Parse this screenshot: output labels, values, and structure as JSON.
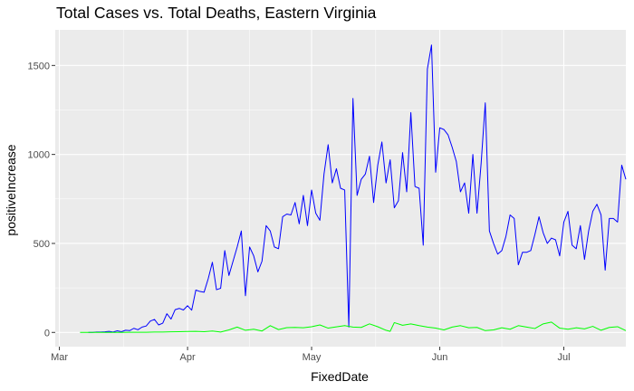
{
  "chart_data": {
    "type": "line",
    "title": "Total Cases vs. Total Deaths, Eastern Virginia",
    "xlabel": "FixedDate",
    "ylabel": "positiveIncrease",
    "x_ticks": [
      {
        "label": "Mar",
        "date": "2020-03-01"
      },
      {
        "label": "Apr",
        "date": "2020-04-01"
      },
      {
        "label": "May",
        "date": "2020-05-01"
      },
      {
        "label": "Jun",
        "date": "2020-06-01"
      },
      {
        "label": "Jul",
        "date": "2020-07-01"
      }
    ],
    "y_ticks": [
      0,
      500,
      1000,
      1500
    ],
    "xlim": [
      "2020-02-29",
      "2020-07-16"
    ],
    "ylim": [
      -80,
      1700
    ],
    "grid": true,
    "legend": "none",
    "background": "#ebebeb",
    "series": [
      {
        "color": "#0000ff",
        "points": [
          [
            "2020-03-08",
            0
          ],
          [
            "2020-03-09",
            0
          ],
          [
            "2020-03-10",
            2
          ],
          [
            "2020-03-11",
            2
          ],
          [
            "2020-03-12",
            3
          ],
          [
            "2020-03-13",
            6
          ],
          [
            "2020-03-14",
            2
          ],
          [
            "2020-03-15",
            9
          ],
          [
            "2020-03-16",
            4
          ],
          [
            "2020-03-17",
            12
          ],
          [
            "2020-03-18",
            10
          ],
          [
            "2020-03-19",
            23
          ],
          [
            "2020-03-20",
            15
          ],
          [
            "2020-03-21",
            30
          ],
          [
            "2020-03-22",
            36
          ],
          [
            "2020-03-23",
            64
          ],
          [
            "2020-03-24",
            73
          ],
          [
            "2020-03-25",
            42
          ],
          [
            "2020-03-26",
            52
          ],
          [
            "2020-03-27",
            105
          ],
          [
            "2020-03-28",
            75
          ],
          [
            "2020-03-29",
            128
          ],
          [
            "2020-03-30",
            135
          ],
          [
            "2020-03-31",
            126
          ],
          [
            "2020-04-01",
            150
          ],
          [
            "2020-04-02",
            125
          ],
          [
            "2020-04-03",
            238
          ],
          [
            "2020-04-04",
            230
          ],
          [
            "2020-04-05",
            226
          ],
          [
            "2020-04-06",
            302
          ],
          [
            "2020-04-07",
            394
          ],
          [
            "2020-04-08",
            240
          ],
          [
            "2020-04-09",
            248
          ],
          [
            "2020-04-10",
            460
          ],
          [
            "2020-04-11",
            320
          ],
          [
            "2020-04-12",
            400
          ],
          [
            "2020-04-13",
            480
          ],
          [
            "2020-04-14",
            570
          ],
          [
            "2020-04-15",
            206
          ],
          [
            "2020-04-16",
            480
          ],
          [
            "2020-04-17",
            430
          ],
          [
            "2020-04-18",
            340
          ],
          [
            "2020-04-19",
            400
          ],
          [
            "2020-04-20",
            600
          ],
          [
            "2020-04-21",
            570
          ],
          [
            "2020-04-22",
            480
          ],
          [
            "2020-04-23",
            470
          ],
          [
            "2020-04-24",
            650
          ],
          [
            "2020-04-25",
            665
          ],
          [
            "2020-04-26",
            660
          ],
          [
            "2020-04-27",
            730
          ],
          [
            "2020-04-28",
            610
          ],
          [
            "2020-04-29",
            770
          ],
          [
            "2020-04-30",
            600
          ],
          [
            "2020-05-01",
            800
          ],
          [
            "2020-05-02",
            670
          ],
          [
            "2020-05-03",
            630
          ],
          [
            "2020-05-04",
            890
          ],
          [
            "2020-05-05",
            1055
          ],
          [
            "2020-05-06",
            840
          ],
          [
            "2020-05-07",
            920
          ],
          [
            "2020-05-08",
            810
          ],
          [
            "2020-05-09",
            800
          ],
          [
            "2020-05-10",
            30
          ],
          [
            "2020-05-11",
            1315
          ],
          [
            "2020-05-12",
            770
          ],
          [
            "2020-05-13",
            860
          ],
          [
            "2020-05-14",
            890
          ],
          [
            "2020-05-15",
            990
          ],
          [
            "2020-05-16",
            730
          ],
          [
            "2020-05-17",
            940
          ],
          [
            "2020-05-18",
            1070
          ],
          [
            "2020-05-19",
            840
          ],
          [
            "2020-05-20",
            970
          ],
          [
            "2020-05-21",
            700
          ],
          [
            "2020-05-22",
            740
          ],
          [
            "2020-05-23",
            1010
          ],
          [
            "2020-05-24",
            790
          ],
          [
            "2020-05-25",
            1235
          ],
          [
            "2020-05-26",
            820
          ],
          [
            "2020-05-27",
            810
          ],
          [
            "2020-05-28",
            490
          ],
          [
            "2020-05-29",
            1480
          ],
          [
            "2020-05-30",
            1615
          ],
          [
            "2020-05-31",
            900
          ],
          [
            "2020-06-01",
            1150
          ],
          [
            "2020-06-02",
            1140
          ],
          [
            "2020-06-03",
            1110
          ],
          [
            "2020-06-04",
            1040
          ],
          [
            "2020-06-05",
            960
          ],
          [
            "2020-06-06",
            790
          ],
          [
            "2020-06-07",
            840
          ],
          [
            "2020-06-08",
            670
          ],
          [
            "2020-06-09",
            1000
          ],
          [
            "2020-06-10",
            670
          ],
          [
            "2020-06-11",
            950
          ],
          [
            "2020-06-12",
            1290
          ],
          [
            "2020-06-13",
            570
          ],
          [
            "2020-06-14",
            500
          ],
          [
            "2020-06-15",
            440
          ],
          [
            "2020-06-16",
            460
          ],
          [
            "2020-06-17",
            540
          ],
          [
            "2020-06-18",
            660
          ],
          [
            "2020-06-19",
            640
          ],
          [
            "2020-06-20",
            380
          ],
          [
            "2020-06-21",
            450
          ],
          [
            "2020-06-22",
            450
          ],
          [
            "2020-06-23",
            460
          ],
          [
            "2020-06-24",
            550
          ],
          [
            "2020-06-25",
            650
          ],
          [
            "2020-06-26",
            560
          ],
          [
            "2020-06-27",
            500
          ],
          [
            "2020-06-28",
            530
          ],
          [
            "2020-06-29",
            520
          ],
          [
            "2020-06-30",
            430
          ],
          [
            "2020-07-01",
            620
          ],
          [
            "2020-07-02",
            680
          ],
          [
            "2020-07-03",
            490
          ],
          [
            "2020-07-04",
            470
          ],
          [
            "2020-07-05",
            600
          ],
          [
            "2020-07-06",
            410
          ],
          [
            "2020-07-07",
            570
          ],
          [
            "2020-07-08",
            680
          ],
          [
            "2020-07-09",
            720
          ],
          [
            "2020-07-10",
            660
          ],
          [
            "2020-07-11",
            350
          ],
          [
            "2020-07-12",
            640
          ],
          [
            "2020-07-13",
            640
          ],
          [
            "2020-07-14",
            620
          ],
          [
            "2020-07-15",
            940
          ],
          [
            "2020-07-16",
            860
          ]
        ]
      },
      {
        "color": "#00ff00",
        "points": [
          [
            "2020-03-06",
            0
          ],
          [
            "2020-03-08",
            0
          ],
          [
            "2020-03-10",
            0
          ],
          [
            "2020-03-12",
            0
          ],
          [
            "2020-03-14",
            0
          ],
          [
            "2020-03-16",
            0
          ],
          [
            "2020-03-18",
            1
          ],
          [
            "2020-03-20",
            1
          ],
          [
            "2020-03-22",
            1
          ],
          [
            "2020-03-24",
            2
          ],
          [
            "2020-03-26",
            2
          ],
          [
            "2020-03-28",
            3
          ],
          [
            "2020-03-30",
            4
          ],
          [
            "2020-04-01",
            5
          ],
          [
            "2020-04-03",
            6
          ],
          [
            "2020-04-05",
            4
          ],
          [
            "2020-04-07",
            8
          ],
          [
            "2020-04-09",
            2
          ],
          [
            "2020-04-11",
            14
          ],
          [
            "2020-04-13",
            30
          ],
          [
            "2020-04-15",
            12
          ],
          [
            "2020-04-17",
            18
          ],
          [
            "2020-04-19",
            8
          ],
          [
            "2020-04-21",
            38
          ],
          [
            "2020-04-23",
            16
          ],
          [
            "2020-04-25",
            27
          ],
          [
            "2020-04-27",
            28
          ],
          [
            "2020-04-29",
            26
          ],
          [
            "2020-05-01",
            32
          ],
          [
            "2020-05-03",
            42
          ],
          [
            "2020-05-05",
            24
          ],
          [
            "2020-05-07",
            31
          ],
          [
            "2020-05-09",
            38
          ],
          [
            "2020-05-11",
            30
          ],
          [
            "2020-05-13",
            28
          ],
          [
            "2020-05-15",
            48
          ],
          [
            "2020-05-17",
            32
          ],
          [
            "2020-05-19",
            12
          ],
          [
            "2020-05-20",
            6
          ],
          [
            "2020-05-21",
            55
          ],
          [
            "2020-05-23",
            40
          ],
          [
            "2020-05-25",
            48
          ],
          [
            "2020-05-27",
            38
          ],
          [
            "2020-05-29",
            30
          ],
          [
            "2020-05-31",
            24
          ],
          [
            "2020-06-02",
            14
          ],
          [
            "2020-06-04",
            30
          ],
          [
            "2020-06-06",
            38
          ],
          [
            "2020-06-08",
            26
          ],
          [
            "2020-06-10",
            28
          ],
          [
            "2020-06-12",
            10
          ],
          [
            "2020-06-14",
            14
          ],
          [
            "2020-06-16",
            26
          ],
          [
            "2020-06-18",
            18
          ],
          [
            "2020-06-20",
            38
          ],
          [
            "2020-06-22",
            30
          ],
          [
            "2020-06-24",
            22
          ],
          [
            "2020-06-26",
            48
          ],
          [
            "2020-06-28",
            58
          ],
          [
            "2020-06-30",
            24
          ],
          [
            "2020-07-02",
            18
          ],
          [
            "2020-07-04",
            26
          ],
          [
            "2020-07-06",
            20
          ],
          [
            "2020-07-08",
            34
          ],
          [
            "2020-07-10",
            12
          ],
          [
            "2020-07-12",
            28
          ],
          [
            "2020-07-14",
            32
          ],
          [
            "2020-07-16",
            10
          ]
        ]
      }
    ]
  }
}
